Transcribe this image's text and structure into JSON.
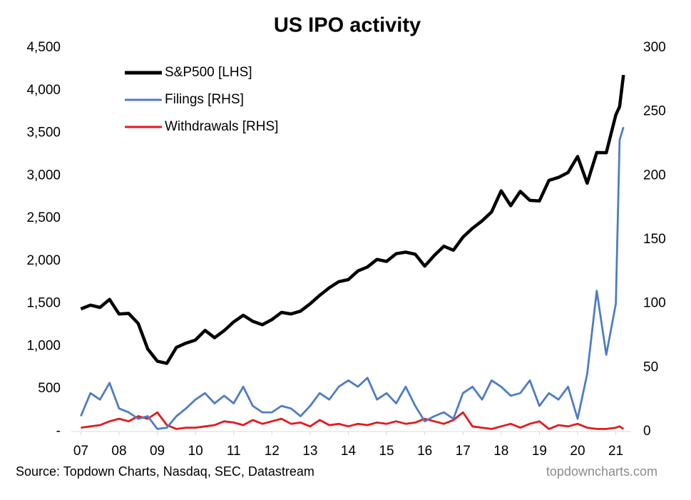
{
  "chart_data": {
    "type": "line",
    "title": "US IPO activity",
    "source": "Source: Topdown Charts, Nasdaq, SEC, Datastream",
    "watermark": "topdowncharts.com",
    "x": [
      2007,
      2007.25,
      2007.5,
      2007.75,
      2008,
      2008.25,
      2008.5,
      2008.75,
      2009,
      2009.25,
      2009.5,
      2009.75,
      2010,
      2010.25,
      2010.5,
      2010.75,
      2011,
      2011.25,
      2011.5,
      2011.75,
      2012,
      2012.25,
      2012.5,
      2012.75,
      2013,
      2013.25,
      2013.5,
      2013.75,
      2014,
      2014.25,
      2014.5,
      2014.75,
      2015,
      2015.25,
      2015.5,
      2015.75,
      2016,
      2016.25,
      2016.5,
      2016.75,
      2017,
      2017.25,
      2017.5,
      2017.75,
      2018,
      2018.25,
      2018.5,
      2018.75,
      2019,
      2019.25,
      2019.5,
      2019.75,
      2020,
      2020.25,
      2020.5,
      2020.75,
      2021,
      2021.1,
      2021.2
    ],
    "series": [
      {
        "name": "S&P500 [LHS]",
        "color": "#000000",
        "axis": "y",
        "values": [
          1438,
          1482,
          1455,
          1549,
          1378,
          1385,
          1267,
          968,
          825,
          800,
          987,
          1036,
          1073,
          1186,
          1101,
          1183,
          1286,
          1363,
          1292,
          1253,
          1312,
          1397,
          1379,
          1412,
          1498,
          1597,
          1685,
          1757,
          1782,
          1884,
          1930,
          2018,
          1995,
          2085,
          2104,
          2079,
          1940,
          2065,
          2173,
          2126,
          2279,
          2384,
          2470,
          2575,
          2823,
          2648,
          2816,
          2711,
          2704,
          2945,
          2980,
          3037,
          3225,
          2912,
          3271,
          3270,
          3714,
          3811,
          4181
        ]
      },
      {
        "name": "Filings [RHS]",
        "color": "#4f7cc3",
        "axis": "y2",
        "values": [
          12,
          30,
          25,
          38,
          18,
          15,
          10,
          12,
          2,
          3,
          12,
          18,
          25,
          30,
          22,
          28,
          22,
          35,
          20,
          15,
          15,
          20,
          18,
          12,
          20,
          30,
          25,
          35,
          40,
          35,
          42,
          25,
          30,
          22,
          35,
          20,
          8,
          12,
          15,
          10,
          30,
          35,
          25,
          40,
          35,
          28,
          30,
          40,
          20,
          30,
          25,
          35,
          10,
          45,
          110,
          60,
          100,
          228,
          238
        ]
      },
      {
        "name": "Withdrawals [RHS]",
        "color": "#e31a1c",
        "axis": "y2",
        "values": [
          3,
          4,
          5,
          8,
          10,
          8,
          12,
          10,
          15,
          5,
          2,
          3,
          3,
          4,
          5,
          8,
          7,
          5,
          9,
          6,
          8,
          10,
          6,
          7,
          4,
          9,
          5,
          6,
          4,
          6,
          5,
          7,
          6,
          8,
          6,
          7,
          10,
          8,
          6,
          9,
          15,
          4,
          3,
          2,
          4,
          6,
          3,
          6,
          8,
          2,
          5,
          4,
          6,
          3,
          2,
          2,
          3,
          4,
          2
        ]
      }
    ],
    "xlim": [
      2006.75,
      2021.4
    ],
    "xticks": [
      {
        "value": 2007,
        "label": "07"
      },
      {
        "value": 2008,
        "label": "08"
      },
      {
        "value": 2009,
        "label": "09"
      },
      {
        "value": 2010,
        "label": "10"
      },
      {
        "value": 2011,
        "label": "11"
      },
      {
        "value": 2012,
        "label": "12"
      },
      {
        "value": 2013,
        "label": "13"
      },
      {
        "value": 2014,
        "label": "14"
      },
      {
        "value": 2015,
        "label": "15"
      },
      {
        "value": 2016,
        "label": "16"
      },
      {
        "value": 2017,
        "label": "17"
      },
      {
        "value": 2018,
        "label": "18"
      },
      {
        "value": 2019,
        "label": "19"
      },
      {
        "value": 2020,
        "label": "20"
      },
      {
        "value": 2021,
        "label": "21"
      }
    ],
    "ylim": [
      0,
      4500
    ],
    "yticks": [
      {
        "value": 0,
        "label": "-"
      },
      {
        "value": 500,
        "label": "500"
      },
      {
        "value": 1000,
        "label": "1,000"
      },
      {
        "value": 1500,
        "label": "1,500"
      },
      {
        "value": 2000,
        "label": "2,000"
      },
      {
        "value": 2500,
        "label": "2,500"
      },
      {
        "value": 3000,
        "label": "3,000"
      },
      {
        "value": 3500,
        "label": "3,500"
      },
      {
        "value": 4000,
        "label": "4,000"
      },
      {
        "value": 4500,
        "label": "4,500"
      }
    ],
    "y2lim": [
      0,
      300
    ],
    "y2ticks": [
      0,
      50,
      100,
      150,
      200,
      250,
      300
    ],
    "grid": false,
    "legend": "upper-left"
  }
}
